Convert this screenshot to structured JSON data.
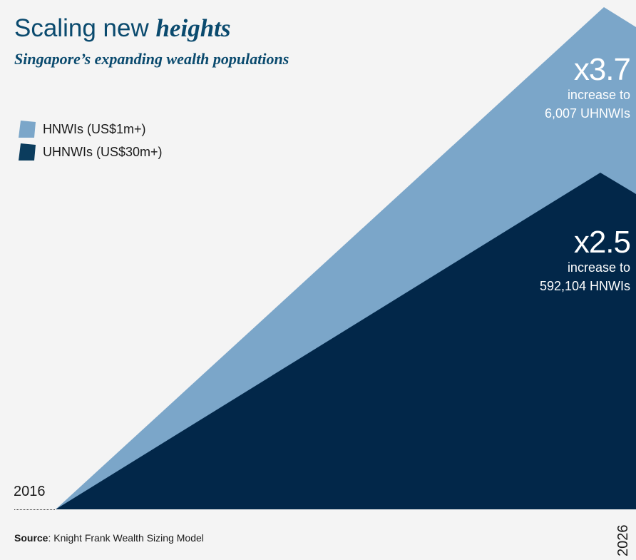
{
  "header": {
    "title_prefix": "Scaling new",
    "title_emphasis": "heights",
    "subtitle": "Singapore’s expanding wealth populations"
  },
  "legend": [
    {
      "label": "HNWIs (US$1m+)",
      "color": "#7aa5c9"
    },
    {
      "label": "UHNWIs (US$30m+)",
      "color": "#0b3c5d"
    }
  ],
  "callouts": {
    "uhnwi": {
      "multiplier": "x3.7",
      "line1": "increase to",
      "line2": "6,007 UHNWIs"
    },
    "hnwi": {
      "multiplier": "x2.5",
      "line1": "increase to",
      "line2": "592,104 HNWIs"
    }
  },
  "axis": {
    "start_year": "2016",
    "end_year": "2026"
  },
  "source": {
    "label": "Source",
    "text": ": Knight Frank Wealth Sizing Model"
  },
  "colors": {
    "background": "#f4f4f4",
    "hnwi_area": "#7ba6c9",
    "uhnwi_area": "#022749",
    "title": "#0a4a6e"
  },
  "chart_data": {
    "type": "area",
    "x": [
      "2016",
      "2026"
    ],
    "series": [
      {
        "name": "HNWIs (US$1m+)",
        "growth_multiple": 2.5,
        "end_value": 592104
      },
      {
        "name": "UHNWIs (US$30m+)",
        "growth_multiple": 3.7,
        "end_value": 6007
      }
    ]
  }
}
